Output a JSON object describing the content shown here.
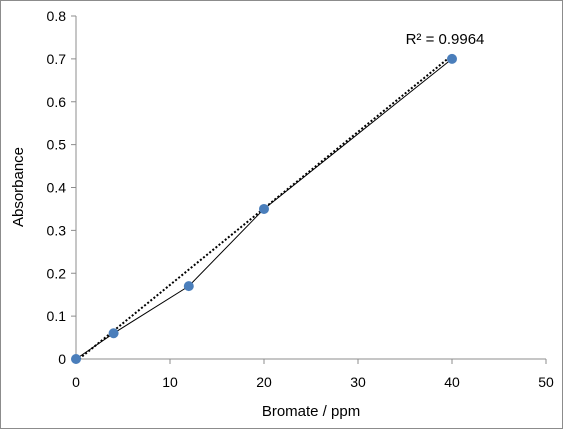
{
  "chart_data": {
    "type": "scatter",
    "title": "",
    "xlabel": "Bromate / ppm",
    "ylabel": "Absorbance",
    "xlim": [
      0,
      50
    ],
    "ylim": [
      0,
      0.8
    ],
    "x_ticks": [
      "0",
      "10",
      "20",
      "30",
      "40",
      "50"
    ],
    "y_ticks": [
      "0",
      "0.1",
      "0.2",
      "0.3",
      "0.4",
      "0.5",
      "0.6",
      "0.7",
      "0.8"
    ],
    "grid": false,
    "series": [
      {
        "x": [
          0,
          4,
          12,
          20,
          40
        ],
        "y": [
          0,
          0.06,
          0.17,
          0.35,
          0.7
        ],
        "marker_color": "#4a7ebb",
        "line_color": "#000000",
        "connected": true
      }
    ],
    "trendline": {
      "style": "dotted",
      "color": "#000000",
      "slope": 0.01785,
      "intercept": -0.0057
    },
    "annotation": "R² = 0.9964"
  }
}
